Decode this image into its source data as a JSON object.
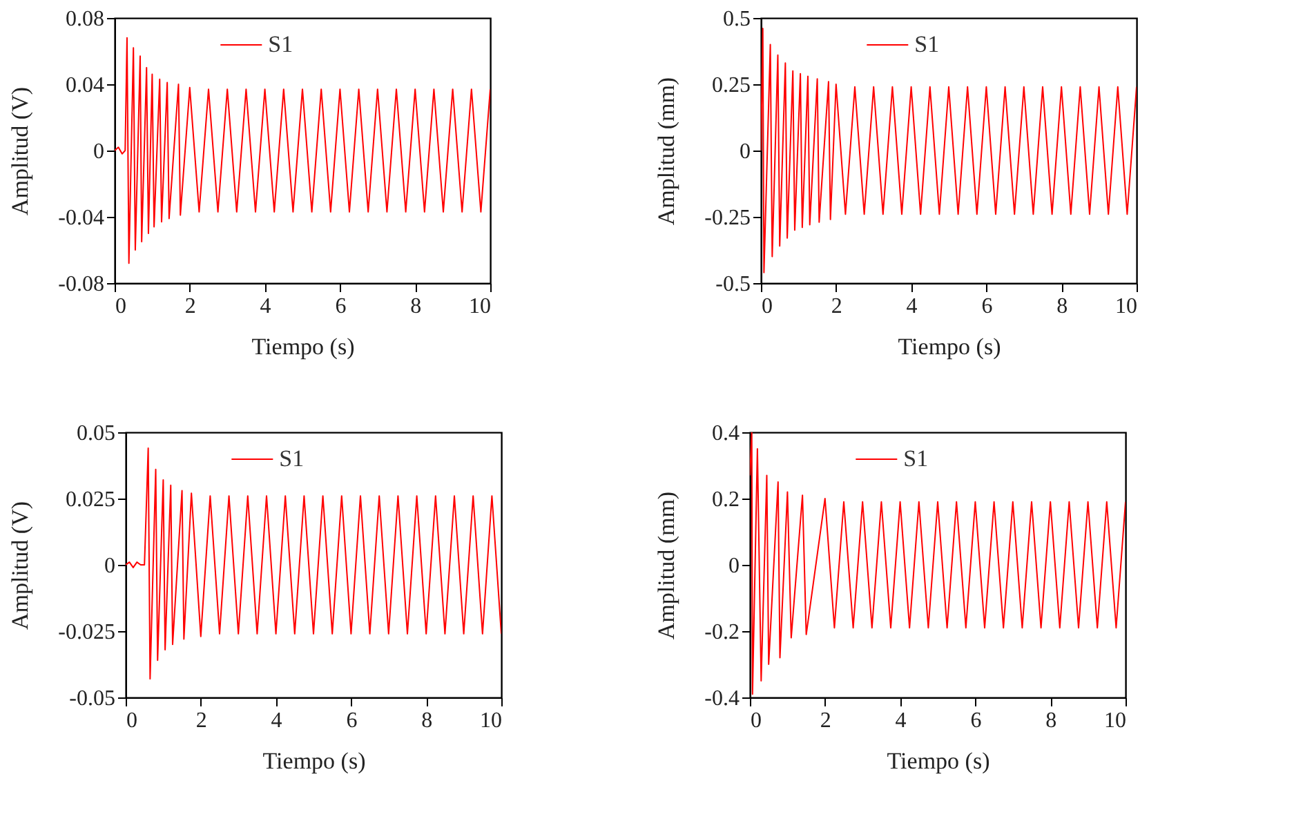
{
  "chart_data": [
    {
      "type": "line",
      "xlabel": "Tiempo (s)",
      "ylabel": "Amplitud (V)",
      "xlim": [
        0,
        10
      ],
      "xticks": [
        0,
        2,
        4,
        6,
        8,
        10
      ],
      "ylim": [
        -0.08,
        0.08
      ],
      "yticks": [
        -0.08,
        -0.04,
        0,
        0.04,
        0.08
      ],
      "legend": "top",
      "x": [
        0,
        0.1,
        0.2,
        0.28,
        0.33,
        0.38,
        0.5,
        0.55,
        0.68,
        0.72,
        0.85,
        0.9,
        1.0,
        1.05,
        1.2,
        1.25,
        1.4,
        1.45,
        1.7,
        1.75,
        2,
        2.25,
        2.5,
        2.75,
        3,
        3.25,
        3.5,
        3.75,
        4,
        4.25,
        4.5,
        4.75,
        5,
        5.25,
        5.5,
        5.75,
        6,
        6.25,
        6.5,
        6.75,
        7,
        7.25,
        7.5,
        7.75,
        8,
        8.25,
        8.5,
        8.75,
        9,
        9.25,
        9.5,
        9.75,
        10
      ],
      "series": [
        {
          "name": "S1",
          "color": "#ff0000",
          "values": [
            0,
            0.002,
            -0.002,
            0,
            0.068,
            -0.068,
            0.062,
            -0.06,
            0.057,
            -0.055,
            0.05,
            -0.05,
            0.046,
            -0.046,
            0.043,
            -0.043,
            0.041,
            -0.041,
            0.04,
            -0.039,
            0.038,
            -0.037,
            0.037,
            -0.037,
            0.037,
            -0.037,
            0.037,
            -0.037,
            0.037,
            -0.037,
            0.037,
            -0.037,
            0.037,
            -0.037,
            0.037,
            -0.037,
            0.037,
            -0.037,
            0.037,
            -0.037,
            0.037,
            -0.037,
            0.037,
            -0.037,
            0.037,
            -0.037,
            0.037,
            -0.037,
            0.037,
            -0.037,
            0.037,
            -0.037,
            0.037
          ]
        }
      ]
    },
    {
      "type": "line",
      "xlabel": "Tiempo (s)",
      "ylabel": "Amplitud (mm)",
      "xlim": [
        0,
        10
      ],
      "xticks": [
        0,
        2,
        4,
        6,
        8,
        10
      ],
      "ylim": [
        -0.5,
        0.5
      ],
      "yticks": [
        -0.5,
        -0.25,
        0,
        0.25,
        0.5
      ],
      "legend": "top",
      "x": [
        0,
        0.05,
        0.08,
        0.25,
        0.3,
        0.45,
        0.5,
        0.65,
        0.7,
        0.85,
        0.9,
        1.05,
        1.1,
        1.25,
        1.3,
        1.5,
        1.55,
        1.8,
        1.85,
        2,
        2.25,
        2.5,
        2.75,
        3,
        3.25,
        3.5,
        3.75,
        4,
        4.25,
        4.5,
        4.75,
        5,
        5.25,
        5.5,
        5.75,
        6,
        6.25,
        6.5,
        6.75,
        7,
        7.25,
        7.5,
        7.75,
        8,
        8.25,
        8.5,
        8.75,
        9,
        9.25,
        9.5,
        9.75,
        10
      ],
      "series": [
        {
          "name": "S1",
          "color": "#ff0000",
          "values": [
            0,
            0.46,
            -0.46,
            0.4,
            -0.4,
            0.36,
            -0.36,
            0.33,
            -0.33,
            0.3,
            -0.3,
            0.29,
            -0.29,
            0.28,
            -0.28,
            0.27,
            -0.27,
            0.26,
            -0.26,
            0.25,
            -0.24,
            0.24,
            -0.24,
            0.24,
            -0.24,
            0.24,
            -0.24,
            0.24,
            -0.24,
            0.24,
            -0.24,
            0.24,
            -0.24,
            0.24,
            -0.24,
            0.24,
            -0.24,
            0.24,
            -0.24,
            0.24,
            -0.24,
            0.24,
            -0.24,
            0.24,
            -0.24,
            0.24,
            -0.24,
            0.24,
            -0.24,
            0.24,
            -0.24,
            0.24
          ]
        }
      ]
    },
    {
      "type": "line",
      "xlabel": "Tiempo (s)",
      "ylabel": "Amplitud (V)",
      "xlim": [
        0,
        10
      ],
      "xticks": [
        0,
        2,
        4,
        6,
        8,
        10
      ],
      "ylim": [
        -0.05,
        0.05
      ],
      "yticks": [
        -0.05,
        -0.025,
        0,
        0.025,
        0.05
      ],
      "legend": "top",
      "x": [
        0,
        0.1,
        0.2,
        0.3,
        0.4,
        0.5,
        0.6,
        0.65,
        0.8,
        0.85,
        1.0,
        1.05,
        1.2,
        1.25,
        1.5,
        1.55,
        1.75,
        2,
        2.25,
        2.5,
        2.75,
        3,
        3.25,
        3.5,
        3.75,
        4,
        4.25,
        4.5,
        4.75,
        5,
        5.25,
        5.5,
        5.75,
        6,
        6.25,
        6.5,
        6.75,
        7,
        7.25,
        7.5,
        7.75,
        8,
        8.25,
        8.5,
        8.75,
        9,
        9.25,
        9.5,
        9.75,
        10
      ],
      "series": [
        {
          "name": "S1",
          "color": "#ff0000",
          "values": [
            0,
            0.001,
            -0.001,
            0.001,
            0,
            0,
            0.044,
            -0.043,
            0.036,
            -0.036,
            0.032,
            -0.032,
            0.03,
            -0.03,
            0.028,
            -0.028,
            0.027,
            -0.027,
            0.026,
            -0.026,
            0.026,
            -0.026,
            0.026,
            -0.026,
            0.026,
            -0.026,
            0.026,
            -0.026,
            0.026,
            -0.026,
            0.026,
            -0.026,
            0.026,
            -0.026,
            0.026,
            -0.026,
            0.026,
            -0.026,
            0.026,
            -0.026,
            0.026,
            -0.026,
            0.026,
            -0.026,
            0.026,
            -0.026,
            0.026,
            -0.026,
            0.026,
            -0.026
          ]
        }
      ]
    },
    {
      "type": "line",
      "xlabel": "Tiempo (s)",
      "ylabel": "Amplitud (mm)",
      "xlim": [
        0,
        10
      ],
      "xticks": [
        0,
        2,
        4,
        6,
        8,
        10
      ],
      "ylim": [
        -0.4,
        0.4
      ],
      "yticks": [
        -0.4,
        -0.2,
        0,
        0.2,
        0.4
      ],
      "legend": "top",
      "x": [
        0,
        0.05,
        0.07,
        0.2,
        0.3,
        0.45,
        0.5,
        0.75,
        0.8,
        1.0,
        1.1,
        1.4,
        1.5,
        2,
        2.25,
        2.5,
        2.75,
        3,
        3.25,
        3.5,
        3.75,
        4,
        4.25,
        4.5,
        4.75,
        5,
        5.25,
        5.5,
        5.75,
        6,
        6.25,
        6.5,
        6.75,
        7,
        7.25,
        7.5,
        7.75,
        8,
        8.25,
        8.5,
        8.75,
        9,
        9.25,
        9.5,
        9.75,
        10
      ],
      "series": [
        {
          "name": "S1",
          "color": "#ff0000",
          "values": [
            0.27,
            0.4,
            -0.39,
            0.35,
            -0.35,
            0.27,
            -0.3,
            0.25,
            -0.28,
            0.22,
            -0.22,
            0.21,
            -0.21,
            0.2,
            -0.19,
            0.19,
            -0.19,
            0.19,
            -0.19,
            0.19,
            -0.19,
            0.19,
            -0.19,
            0.19,
            -0.19,
            0.19,
            -0.19,
            0.19,
            -0.19,
            0.19,
            -0.19,
            0.19,
            -0.19,
            0.19,
            -0.19,
            0.19,
            -0.19,
            0.19,
            -0.19,
            0.19,
            -0.19,
            0.19,
            -0.19,
            0.19,
            -0.19,
            0.19
          ]
        }
      ]
    }
  ]
}
